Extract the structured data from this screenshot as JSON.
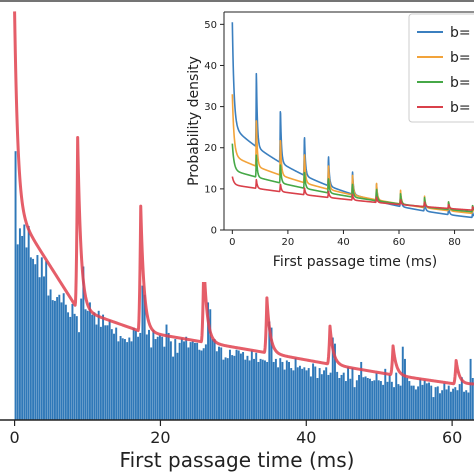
{
  "chart_data": [
    {
      "type": "bar",
      "role": "main",
      "title": "",
      "xlabel": "First passage time (ms)",
      "ylabel": "",
      "xlim": [
        -2,
        63
      ],
      "ylim": [
        0,
        55
      ],
      "xticks": [
        0,
        20,
        40,
        60
      ],
      "xtick_labels": [
        "0",
        "20",
        "40",
        "60"
      ],
      "grid": false,
      "colors": {
        "bars": "#2f78b8",
        "curve": "#e0424f"
      },
      "histogram": {
        "bin_width": 0.3,
        "x_start": 0,
        "heights": [
          35.2,
          23.0,
          25.1,
          24.1,
          25.6,
          22.6,
          25.4,
          21.3,
          21.1,
          20.4,
          21.6,
          18.7,
          21.3,
          18.8,
          20.8,
          16.3,
          17.1,
          15.7,
          15.6,
          16.1,
          16.4,
          15.4,
          16.6,
          15.1,
          14.1,
          13.5,
          15.2,
          13.9,
          13.6,
          11.5,
          15.9,
          20.1,
          14.5,
          14.3,
          15.4,
          13.8,
          14.1,
          12.5,
          14.3,
          12.2,
          13.8,
          12.4,
          12.4,
          13.1,
          11.9,
          11.3,
          12.1,
          10.3,
          11.0,
          10.7,
          10.6,
          10.2,
          10.8,
          10.3,
          12.1,
          11.7,
          10.9,
          11.4,
          17.6,
          16.4,
          11.2,
          11.8,
          9.5,
          11.8,
          10.6,
          10.9,
          11.1,
          10.9,
          9.6,
          12.5,
          11.4,
          10.3,
          8.3,
          10.6,
          8.8,
          10.1,
          10.7,
          10.3,
          10.9,
          9.5,
          10.2,
          10.3,
          10.1,
          10.1,
          9.2,
          9.1,
          9.4,
          9.9,
          15.4,
          14.5,
          10.6,
          10.6,
          9.0,
          9.6,
          9.5,
          7.9,
          8.2,
          8.1,
          9.2,
          8.5,
          8.4,
          9.2,
          9.1,
          8.7,
          8.9,
          7.9,
          8.4,
          7.8,
          9.1,
          8.0,
          8.8,
          7.6,
          8.0,
          7.9,
          7.8,
          7.6,
          12.9,
          12.1,
          7.6,
          8.0,
          6.9,
          8.1,
          7.6,
          6.6,
          7.8,
          7.6,
          6.8,
          6.5,
          8.1,
          6.9,
          7.1,
          6.7,
          6.9,
          6.5,
          6.8,
          5.7,
          7.4,
          7.0,
          5.5,
          6.8,
          6.0,
          6.5,
          6.9,
          5.9,
          6.2,
          10.8,
          10.0,
          6.3,
          5.5,
          5.9,
          6.2,
          5.1,
          6.9,
          5.4,
          6.8,
          4.3,
          5.2,
          5.9,
          7.6,
          5.6,
          5.7,
          5.5,
          5.4,
          5.1,
          5.2,
          6.1,
          5.2,
          5.1,
          4.6,
          6.7,
          5.0,
          5.9,
          5.0,
          4.3,
          6.2,
          4.7,
          4.5,
          9.6,
          8.0,
          5.5,
          5.1,
          4.5,
          4.5,
          4.0,
          4.4,
          5.4,
          4.6,
          5.2,
          4.8,
          4.9,
          4.5,
          3.0,
          4.3,
          4.4,
          3.5,
          3.9,
          4.8,
          4.0,
          4.5,
          3.7,
          4.1,
          4.3,
          3.9,
          4.7,
          5.6,
          3.7,
          3.9,
          3.6,
          8.0,
          5.5
        ]
      },
      "curve": {
        "period": 8.65,
        "peaks": [
          {
            "t": 0.0,
            "peak": 53.5,
            "base": 27.5
          },
          {
            "t": 8.65,
            "peak": 37.0,
            "base": 14.5
          },
          {
            "t": 17.3,
            "peak": 28.0,
            "base": 11.6
          },
          {
            "t": 25.95,
            "peak": 21.0,
            "base": 10.2
          },
          {
            "t": 34.6,
            "peak": 16.0,
            "base": 8.8
          },
          {
            "t": 43.25,
            "peak": 12.3,
            "base": 7.3
          },
          {
            "t": 51.9,
            "peak": 9.7,
            "base": 5.9
          },
          {
            "t": 60.55,
            "peak": 7.8,
            "base": 4.7
          }
        ]
      }
    },
    {
      "type": "line",
      "role": "inset",
      "title": "",
      "xlabel": "First passage time (ms)",
      "ylabel": "Probability density",
      "xlim": [
        -3,
        87
      ],
      "ylim": [
        0,
        53
      ],
      "xticks": [
        0,
        20,
        40,
        60,
        80
      ],
      "xtick_labels": [
        "0",
        "20",
        "40",
        "60",
        "80"
      ],
      "yticks": [
        0,
        10,
        20,
        30,
        40,
        50
      ],
      "ytick_labels": [
        "0",
        "10",
        "20",
        "30",
        "40",
        "50"
      ],
      "grid": false,
      "legend": "top-right",
      "period": 8.65,
      "series": [
        {
          "name": "b=",
          "color": "#3b7fbf",
          "start": 50.5,
          "base0": 25.0,
          "base_end": 3.0,
          "amp0": 25.5,
          "amp_end": 1.0
        },
        {
          "name": "b=",
          "color": "#f2a33a",
          "start": 33.0,
          "base0": 18.0,
          "base_end": 4.0,
          "amp0": 14.5,
          "amp_end": 1.5
        },
        {
          "name": "b=",
          "color": "#46a847",
          "start": 21.0,
          "base0": 14.5,
          "base_end": 4.4,
          "amp0": 6.5,
          "amp_end": 1.5
        },
        {
          "name": "b=",
          "color": "#d9404a",
          "start": 13.0,
          "base0": 11.0,
          "base_end": 4.8,
          "amp0": 2.5,
          "amp_end": 0.8
        }
      ]
    }
  ]
}
